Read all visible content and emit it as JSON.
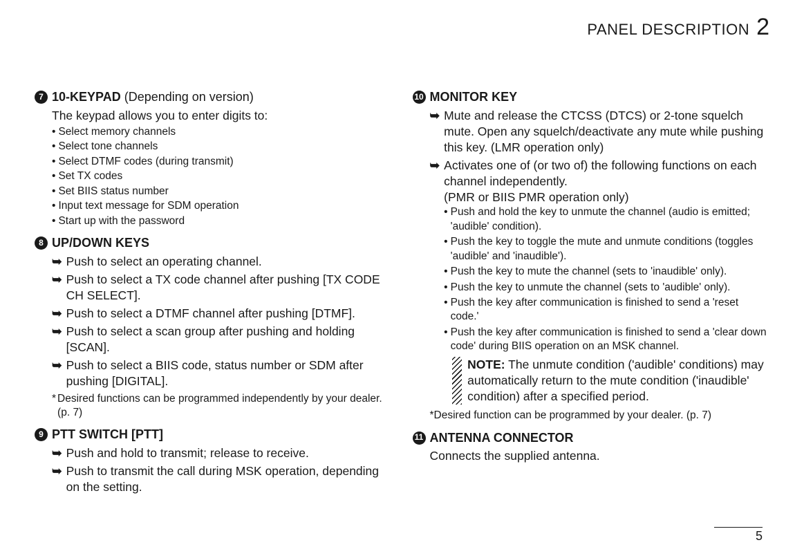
{
  "header": {
    "title": "PANEL DESCRIPTION",
    "chapter": "2"
  },
  "page_number": "5",
  "left": {
    "i7": {
      "num": "7",
      "title": "10-KEYPAD",
      "title_extra": " (Depending on version)",
      "lead": "The keypad allows you to enter digits to:",
      "bullets": [
        "Select memory channels",
        "Select tone channels",
        "Select DTMF codes (during transmit)",
        "Set TX codes",
        "Set BIIS status number",
        "Input text message for SDM operation",
        "Start up with the password"
      ]
    },
    "i8": {
      "num": "8",
      "title": "UP/DOWN KEYS",
      "arrows": [
        "Push to select an operating channel.",
        "Push to select a TX code channel after pushing [TX CODE CH SELECT].",
        "Push to select a DTMF channel after pushing [DTMF].",
        "Push to select a scan group after pushing and holding [SCAN].",
        "Push to select a BIIS code, status number or SDM after pushing [DIGITAL]."
      ],
      "footnote": "Desired functions can be programmed independently by your dealer. (p. 7)"
    },
    "i9": {
      "num": "9",
      "title": "PTT SWITCH [PTT]",
      "arrows": [
        "Push and hold to transmit; release to receive.",
        "Push to transmit the call during MSK operation, depending on the setting."
      ]
    }
  },
  "right": {
    "i10": {
      "num": "10",
      "title": "MONITOR KEY",
      "arrow1": "Mute and release the CTCSS (DTCS) or 2-tone squelch mute. Open any squelch/deactivate any mute while pushing this key. (LMR operation only)",
      "arrow2a": "Activates one of (or two of) the following functions on each channel independently.",
      "arrow2b": "(PMR or BIIS PMR operation only)",
      "bullets": [
        "Push and hold the key to unmute the channel (audio is emitted; 'audible' condition).",
        "Push the key to toggle the mute and unmute conditions (toggles 'audible' and 'inaudible').",
        "Push the key to mute the channel (sets to 'inaudible' only).",
        "Push the key to unmute the channel (sets to 'audible' only).",
        "Push the key after communication is finished to send a 'reset code.'",
        "Push the key after communication is finished to send a 'clear down code' during BIIS operation on an MSK channel."
      ],
      "note_label": "NOTE:",
      "note_text": " The unmute condition ('audible' conditions) may automatically return to the mute condition ('inaudible' condition) after a specified period.",
      "footnote": "*Desired function can be programmed by your dealer. (p. 7)"
    },
    "i11": {
      "num": "11",
      "title": "ANTENNA CONNECTOR",
      "lead": "Connects the supplied antenna."
    }
  }
}
